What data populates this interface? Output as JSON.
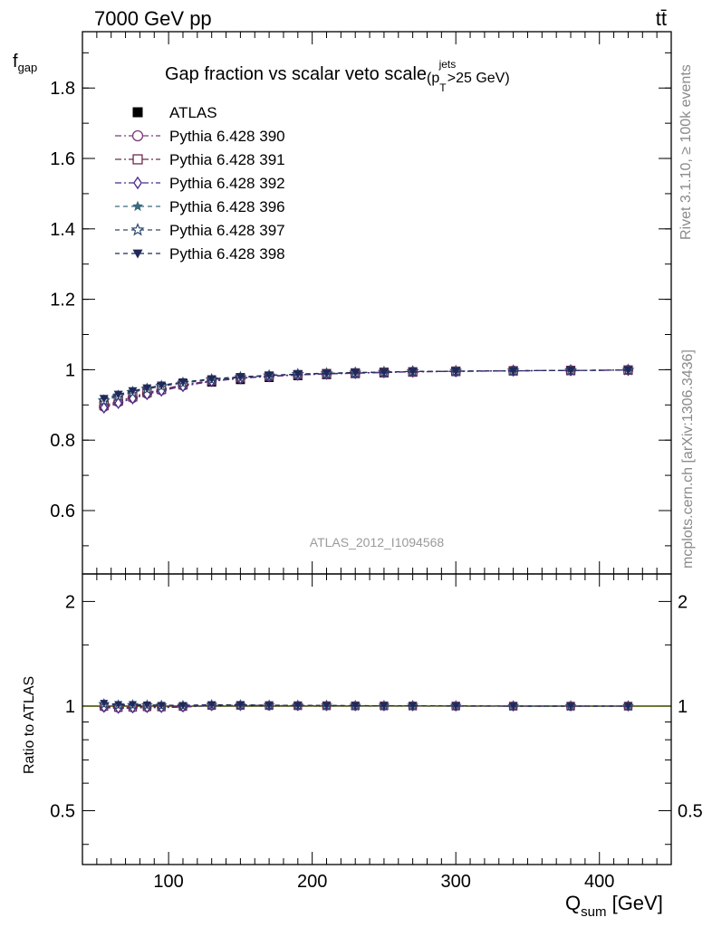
{
  "header": {
    "energy_label": "7000 GeV pp",
    "process_label": "tt̄",
    "rivet_label": "Rivet 3.1.10, ≥ 100k events",
    "mcplots_label": "mcplots.cern.ch [arXiv:1306.3436]",
    "analysis_label": "ATLAS_2012_I1094568"
  },
  "title": {
    "main": "Gap fraction vs scalar veto scale",
    "open": "(p",
    "sup": "jets",
    "sub": "T",
    "tail": " >25 GeV)"
  },
  "axes": {
    "ylabel_main": "f",
    "ylabel_main_sub": "gap",
    "ylabel_ratio": "Ratio to ATLAS",
    "xlabel": "Q",
    "xlabel_sub": "sum",
    "xlabel_unit": " [GeV]"
  },
  "chart_data": [
    {
      "type": "line",
      "panel": "main",
      "xlim": [
        40,
        450
      ],
      "ylim": [
        0.42,
        1.96
      ],
      "x_ticks": [
        100,
        200,
        300,
        400
      ],
      "y_ticks": [
        0.6,
        0.8,
        1,
        1.2,
        1.4,
        1.6,
        1.8
      ],
      "y_tick_labels": [
        "0.6",
        "0.8",
        "1",
        "1.2",
        "1.4",
        "1.6",
        "1.8"
      ],
      "x": [
        55,
        65,
        75,
        85,
        95,
        110,
        130,
        150,
        170,
        190,
        210,
        230,
        250,
        270,
        300,
        340,
        380,
        420
      ],
      "legend_position": "top-left",
      "series": [
        {
          "name": "ATLAS",
          "color": "#000000",
          "marker": "square-filled",
          "values": [
            0.9,
            0.92,
            0.93,
            0.94,
            0.95,
            0.96,
            0.965,
            0.972,
            0.978,
            0.983,
            0.986,
            0.989,
            0.991,
            0.993,
            0.995,
            0.997,
            0.998,
            0.999
          ]
        },
        {
          "name": "Pythia 6.428 390",
          "color": "#7a3b7a",
          "marker": "circle-open",
          "dash": "dashdot",
          "values": [
            0.895,
            0.908,
            0.92,
            0.932,
            0.942,
            0.955,
            0.968,
            0.976,
            0.981,
            0.985,
            0.988,
            0.99,
            0.992,
            0.994,
            0.995,
            0.997,
            0.998,
            0.999
          ]
        },
        {
          "name": "Pythia 6.428 391",
          "color": "#6a2c50",
          "marker": "square-open",
          "dash": "dashdot",
          "values": [
            0.898,
            0.911,
            0.923,
            0.935,
            0.944,
            0.957,
            0.969,
            0.977,
            0.982,
            0.986,
            0.989,
            0.991,
            0.993,
            0.994,
            0.996,
            0.997,
            0.998,
            0.999
          ]
        },
        {
          "name": "Pythia 6.428 392",
          "color": "#4b2b8a",
          "marker": "diamond-open",
          "dash": "dashdot",
          "values": [
            0.892,
            0.905,
            0.918,
            0.93,
            0.94,
            0.953,
            0.967,
            0.975,
            0.981,
            0.985,
            0.988,
            0.99,
            0.992,
            0.994,
            0.995,
            0.997,
            0.998,
            0.999
          ]
        },
        {
          "name": "Pythia 6.428 396",
          "color": "#3b6a80",
          "marker": "star-filled",
          "dash": "dashed",
          "values": [
            0.915,
            0.928,
            0.938,
            0.947,
            0.955,
            0.964,
            0.973,
            0.979,
            0.984,
            0.987,
            0.99,
            0.992,
            0.993,
            0.995,
            0.996,
            0.997,
            0.998,
            0.999
          ]
        },
        {
          "name": "Pythia 6.428 397",
          "color": "#2f4a6e",
          "marker": "star-open",
          "dash": "dashed",
          "values": [
            0.912,
            0.925,
            0.936,
            0.945,
            0.953,
            0.962,
            0.972,
            0.978,
            0.983,
            0.987,
            0.989,
            0.991,
            0.993,
            0.995,
            0.996,
            0.997,
            0.998,
            0.999
          ]
        },
        {
          "name": "Pythia 6.428 398",
          "color": "#1f2a5a",
          "marker": "triangle-down-filled",
          "dash": "dashed",
          "values": [
            0.918,
            0.93,
            0.94,
            0.948,
            0.956,
            0.965,
            0.974,
            0.98,
            0.984,
            0.988,
            0.99,
            0.992,
            0.993,
            0.995,
            0.996,
            0.997,
            0.998,
            0.999
          ]
        }
      ]
    },
    {
      "type": "line",
      "panel": "ratio",
      "log_scale_y": true,
      "xlim": [
        40,
        450
      ],
      "ylim": [
        0.35,
        2.4
      ],
      "x_ticks": [
        100,
        200,
        300,
        400
      ],
      "x_tick_labels": [
        "100",
        "200",
        "300",
        "400"
      ],
      "y_ticks": [
        0.5,
        1,
        2
      ],
      "y_tick_labels": [
        "0.5",
        "1",
        "2"
      ],
      "reference_line": 1,
      "band_color": "#d9ef6a",
      "x": [
        55,
        65,
        75,
        85,
        95,
        110,
        130,
        150,
        170,
        190,
        210,
        230,
        250,
        270,
        300,
        340,
        380,
        420
      ],
      "series": [
        {
          "name": "Pythia 6.428 390",
          "values": [
            0.994,
            0.987,
            0.989,
            0.991,
            0.992,
            0.995,
            1.003,
            1.004,
            1.003,
            1.002,
            1.002,
            1.001,
            1.001,
            1.001,
            1.0,
            1.0,
            1.0,
            1.0
          ]
        },
        {
          "name": "Pythia 6.428 391",
          "values": [
            0.998,
            0.99,
            0.992,
            0.995,
            0.994,
            0.997,
            1.004,
            1.005,
            1.004,
            1.003,
            1.003,
            1.002,
            1.002,
            1.001,
            1.001,
            1.0,
            1.0,
            1.0
          ]
        },
        {
          "name": "Pythia 6.428 392",
          "values": [
            0.991,
            0.984,
            0.987,
            0.989,
            0.989,
            0.993,
            1.002,
            1.003,
            1.003,
            1.002,
            1.002,
            1.001,
            1.001,
            1.001,
            1.0,
            1.0,
            1.0,
            1.0
          ]
        },
        {
          "name": "Pythia 6.428 396",
          "values": [
            1.017,
            1.009,
            1.009,
            1.007,
            1.005,
            1.004,
            1.008,
            1.007,
            1.006,
            1.004,
            1.004,
            1.003,
            1.002,
            1.002,
            1.001,
            1.0,
            1.0,
            1.0
          ]
        },
        {
          "name": "Pythia 6.428 397",
          "values": [
            1.013,
            1.005,
            1.006,
            1.005,
            1.003,
            1.002,
            1.007,
            1.006,
            1.005,
            1.004,
            1.003,
            1.002,
            1.002,
            1.002,
            1.001,
            1.0,
            1.0,
            1.0
          ]
        },
        {
          "name": "Pythia 6.428 398",
          "values": [
            1.02,
            1.011,
            1.011,
            1.009,
            1.006,
            1.005,
            1.009,
            1.008,
            1.006,
            1.005,
            1.004,
            1.003,
            1.002,
            1.002,
            1.001,
            1.0,
            1.0,
            1.0
          ]
        }
      ]
    }
  ]
}
